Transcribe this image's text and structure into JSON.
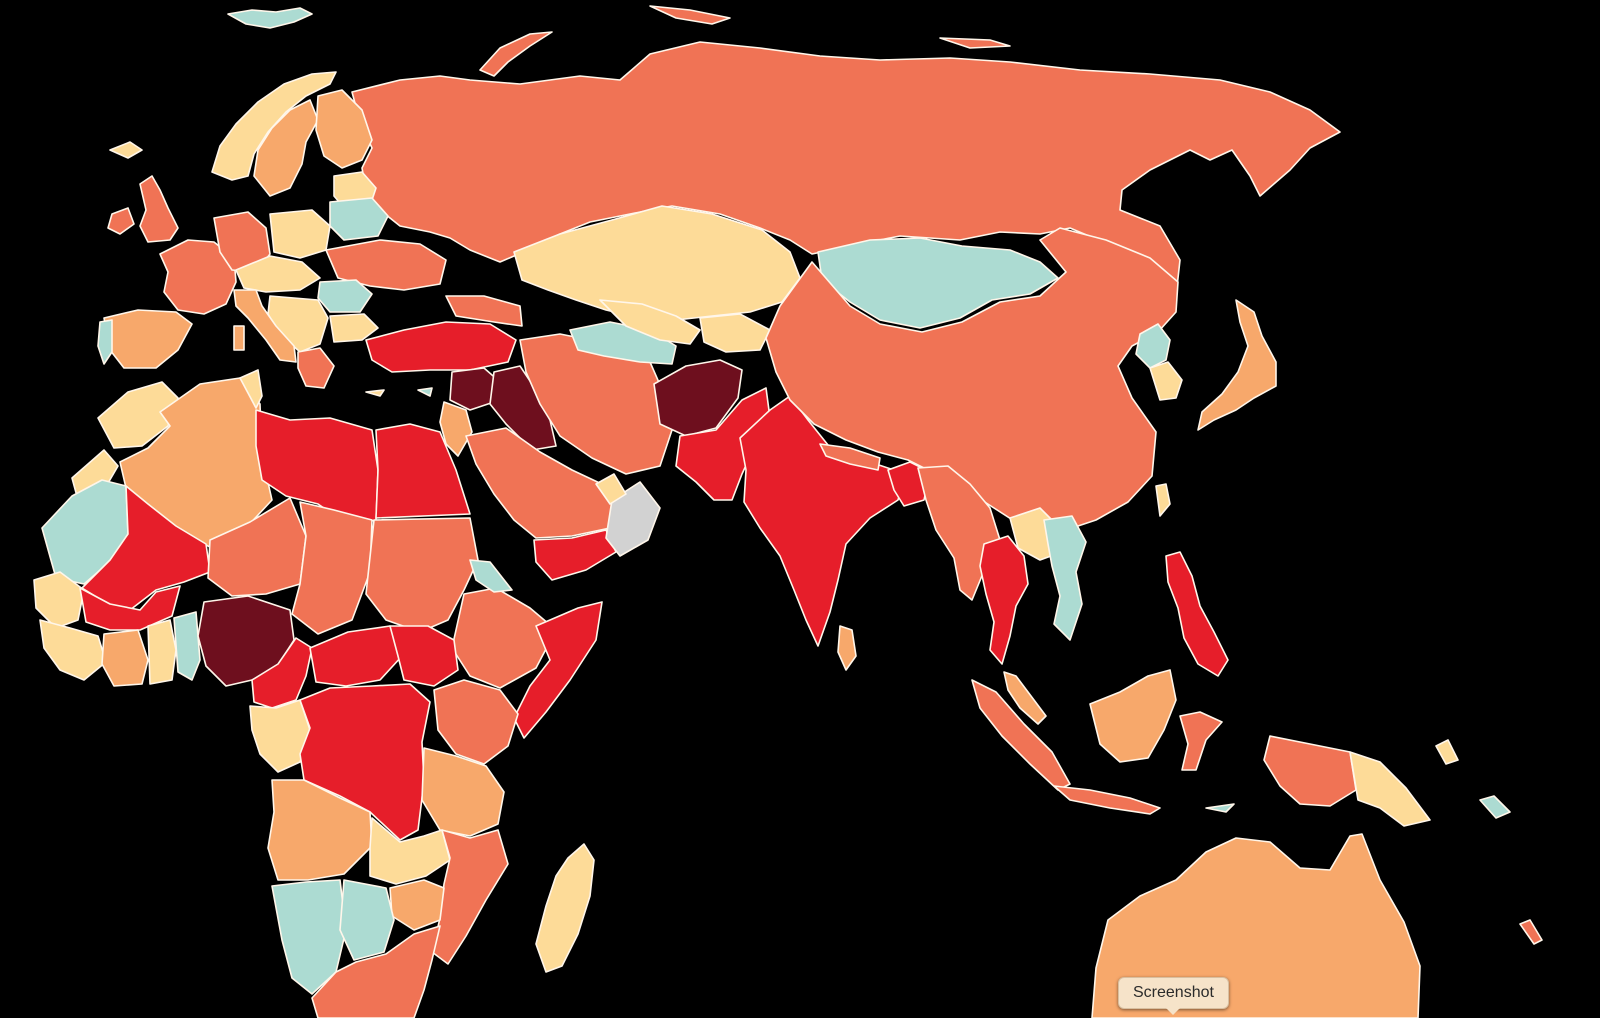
{
  "colors": {
    "background": "#000000",
    "border": "#fff6ea",
    "very_high": "#6e0f1e",
    "high": "#e61e2a",
    "elevated": "#f07355",
    "moderate": "#f7a86b",
    "low": "#fddb98",
    "very_low": "#acdbd2",
    "no_data": "#d2d2d2"
  },
  "tooltip": {
    "label": "Screenshot"
  }
}
